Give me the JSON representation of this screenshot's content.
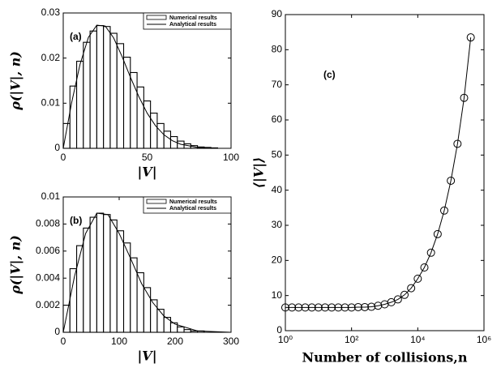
{
  "chart_data": [
    {
      "type": "histogram",
      "label": "(a)",
      "xlabel": "|V|",
      "ylabel": "ρ(|V|, n)",
      "bins": [
        0,
        4,
        8,
        12,
        16,
        20,
        24,
        28,
        32,
        36,
        40,
        44,
        48,
        52,
        56,
        60,
        64,
        68,
        72,
        76,
        80,
        84,
        88,
        92
      ],
      "series": [
        {
          "name": "Numerical results",
          "color": "#ffffff",
          "values": [
            0.0055,
            0.0138,
            0.0193,
            0.0235,
            0.026,
            0.0272,
            0.027,
            0.0255,
            0.0232,
            0.0202,
            0.0168,
            0.0136,
            0.0105,
            0.0078,
            0.0055,
            0.0038,
            0.0026,
            0.0016,
            0.001,
            0.0006,
            0.0003,
            0.0002,
            0.0001
          ]
        },
        {
          "name": "Analytical results",
          "color": "#000000",
          "x": [
            0,
            5,
            10,
            15,
            20,
            25,
            30,
            35,
            40,
            45,
            50,
            55,
            60,
            65,
            70,
            80,
            90,
            100
          ],
          "values": [
            0,
            0.0101,
            0.0186,
            0.0246,
            0.0273,
            0.0271,
            0.0245,
            0.0204,
            0.0158,
            0.0115,
            0.0078,
            0.005,
            0.003,
            0.0017,
            0.0009,
            0.0002,
            0,
            0
          ]
        }
      ],
      "xlim": [
        0,
        100
      ],
      "ylim": [
        0,
        0.03
      ],
      "xticks": [
        0,
        50,
        100
      ],
      "yticks": [
        0,
        0.01,
        0.02,
        0.03
      ]
    },
    {
      "type": "histogram",
      "label": "(b)",
      "xlabel": "|V|",
      "ylabel": "ρ(|V|, n)",
      "bins": [
        0,
        12,
        24,
        36,
        48,
        60,
        72,
        84,
        96,
        108,
        120,
        132,
        144,
        156,
        168,
        180,
        192,
        204,
        216,
        228,
        240,
        252
      ],
      "series": [
        {
          "name": "Numerical results",
          "color": "#ffffff",
          "values": [
            0.002,
            0.0047,
            0.0064,
            0.0077,
            0.0085,
            0.0088,
            0.0087,
            0.0083,
            0.0075,
            0.0066,
            0.0055,
            0.0044,
            0.0033,
            0.0024,
            0.0017,
            0.0011,
            0.0007,
            0.0004,
            0.0002,
            0.0001,
            0.0001
          ]
        },
        {
          "name": "Analytical results",
          "color": "#000000",
          "x": [
            0,
            20,
            40,
            60,
            80,
            100,
            120,
            140,
            160,
            180,
            200,
            240,
            300
          ],
          "values": [
            0,
            0.0041,
            0.0073,
            0.0088,
            0.0087,
            0.0073,
            0.0055,
            0.0036,
            0.0022,
            0.0012,
            0.0006,
            0.0001,
            0
          ]
        }
      ],
      "xlim": [
        0,
        300
      ],
      "ylim": [
        0,
        0.01
      ],
      "xticks": [
        0,
        100,
        200,
        300
      ],
      "yticks": [
        0,
        0.002,
        0.004,
        0.006,
        0.008,
        0.01
      ]
    },
    {
      "type": "line",
      "label": "(c)",
      "xlabel": "Number of collisions,n",
      "ylabel": "⟨|V|⟩",
      "log_x": true,
      "marker": "circle",
      "x": [
        1,
        1.585,
        2.512,
        3.981,
        6.31,
        10,
        15.85,
        25.12,
        39.81,
        63.1,
        100,
        158.5,
        251.2,
        398.1,
        631,
        1000,
        1585,
        2512,
        3981,
        6310,
        10000,
        15850,
        25120,
        39810,
        63100,
        100000,
        158500,
        251200,
        398100
      ],
      "series": [
        {
          "color": "#000000",
          "values": [
            6.6,
            6.6,
            6.6,
            6.6,
            6.6,
            6.6,
            6.6,
            6.6,
            6.6,
            6.6,
            6.6,
            6.7,
            6.7,
            6.8,
            7.1,
            7.5,
            8.1,
            8.9,
            10.2,
            12.1,
            14.8,
            18,
            22.2,
            27.5,
            34.2,
            42.7,
            53.2,
            66.3,
            83.5
          ]
        }
      ],
      "xlim": [
        1,
        1000000
      ],
      "ylim": [
        0,
        90
      ],
      "xticks": [
        {
          "value": 1,
          "label": "10⁰"
        },
        {
          "value": 100,
          "label": "10²"
        },
        {
          "value": 10000,
          "label": "10⁴"
        },
        {
          "value": 1000000,
          "label": "10⁶"
        }
      ],
      "yticks": [
        0,
        10,
        20,
        30,
        40,
        50,
        60,
        70,
        80,
        90
      ]
    }
  ]
}
